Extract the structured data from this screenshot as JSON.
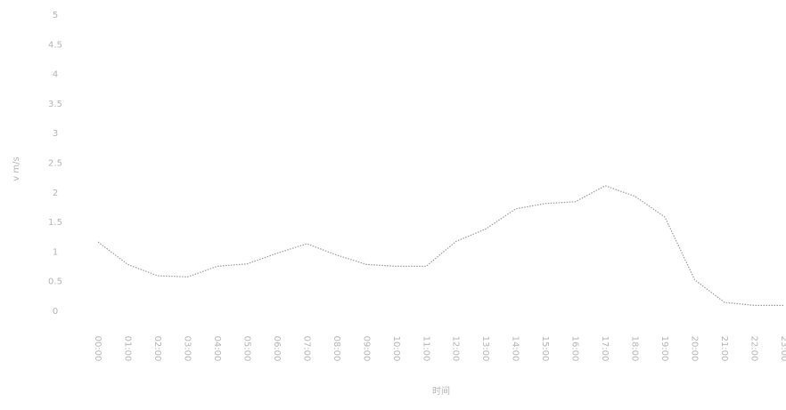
{
  "chart_data": {
    "type": "line",
    "y_label": "v m/s",
    "x_label": "时间",
    "categories": [
      "00:00",
      "01:00",
      "02:00",
      "03:00",
      "04:00",
      "05:00",
      "06:00",
      "07:00",
      "08:00",
      "09:00",
      "10:00",
      "11:00",
      "12:00",
      "13:00",
      "14:00",
      "15:00",
      "16:00",
      "17:00",
      "18:00",
      "19:00",
      "20:00",
      "21:00",
      "22:00",
      "23:00"
    ],
    "series": [
      {
        "name": "v",
        "color": "#9a9a9a",
        "values": [
          1.17,
          0.79,
          0.6,
          0.58,
          0.76,
          0.8,
          0.98,
          1.14,
          0.95,
          0.79,
          0.76,
          0.76,
          1.18,
          1.39,
          1.73,
          1.82,
          1.85,
          2.12,
          1.94,
          1.59,
          0.53,
          0.15,
          0.1,
          0.1
        ]
      }
    ],
    "ylim": [
      0,
      5
    ],
    "yticks": [
      0,
      0.5,
      1,
      1.5,
      2,
      2.5,
      3,
      3.5,
      4,
      4.5,
      5
    ],
    "grid": false
  }
}
